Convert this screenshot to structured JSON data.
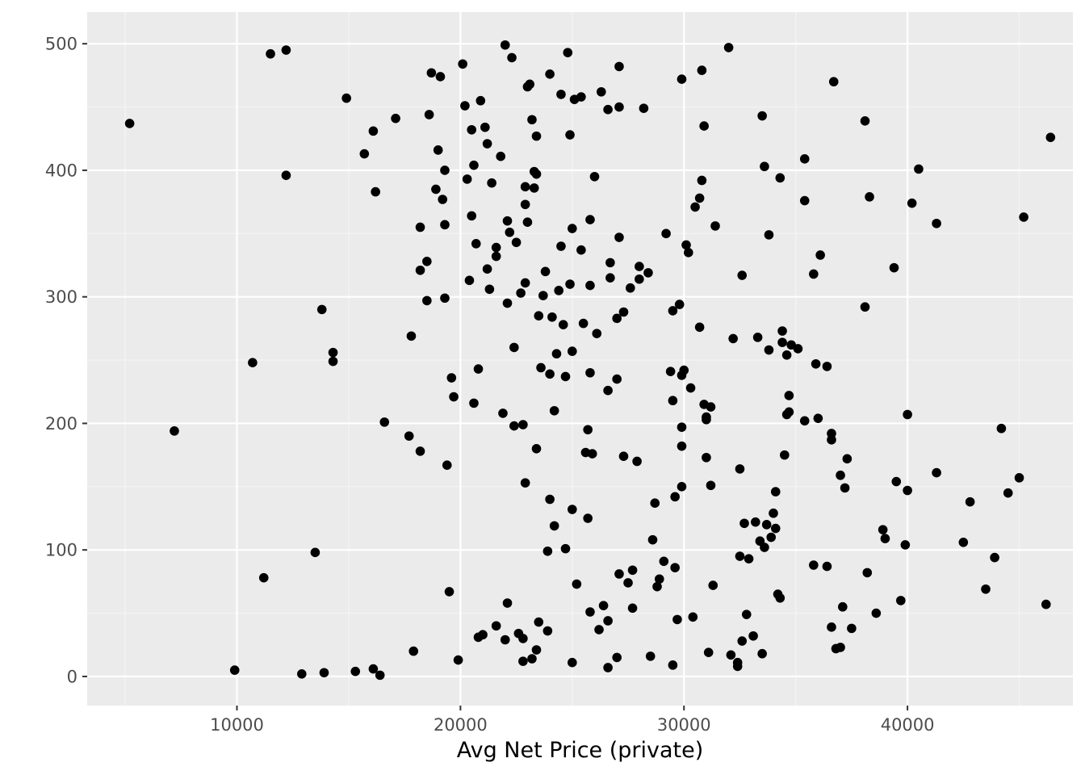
{
  "colors": {
    "panel_background": "#ebebeb",
    "grid_major": "#ffffff",
    "grid_minor": "#f4f4f4",
    "point": "#000000",
    "tick_text": "#4d4d4d"
  },
  "chart_data": {
    "type": "scatter",
    "title": "",
    "xlabel": "Avg Net Price (private)",
    "ylabel": "",
    "xlim": [
      3300,
      47400
    ],
    "ylim": [
      -23,
      525
    ],
    "x_ticks": [
      10000,
      20000,
      30000,
      40000
    ],
    "x_tick_labels": [
      "10000",
      "20000",
      "30000",
      "40000"
    ],
    "y_ticks": [
      0,
      100,
      200,
      300,
      400,
      500
    ],
    "y_tick_labels": [
      "0",
      "100",
      "200",
      "300",
      "400",
      "500"
    ],
    "grid": true,
    "legend": "none",
    "points": [
      [
        5200,
        437
      ],
      [
        7200,
        194
      ],
      [
        9900,
        5
      ],
      [
        10700,
        248
      ],
      [
        11200,
        78
      ],
      [
        11500,
        492
      ],
      [
        12200,
        495
      ],
      [
        12200,
        396
      ],
      [
        12900,
        2
      ],
      [
        13500,
        98
      ],
      [
        13800,
        290
      ],
      [
        13900,
        3
      ],
      [
        14300,
        256
      ],
      [
        14300,
        249
      ],
      [
        14900,
        457
      ],
      [
        15300,
        4
      ],
      [
        15700,
        413
      ],
      [
        16100,
        6
      ],
      [
        16100,
        431
      ],
      [
        16200,
        383
      ],
      [
        16400,
        1
      ],
      [
        16600,
        201
      ],
      [
        17100,
        441
      ],
      [
        17700,
        190
      ],
      [
        17800,
        269
      ],
      [
        17900,
        20
      ],
      [
        18200,
        178
      ],
      [
        18200,
        321
      ],
      [
        18200,
        355
      ],
      [
        18500,
        328
      ],
      [
        18500,
        297
      ],
      [
        18600,
        444
      ],
      [
        18700,
        477
      ],
      [
        18900,
        385
      ],
      [
        19000,
        416
      ],
      [
        19100,
        474
      ],
      [
        19200,
        377
      ],
      [
        19300,
        357
      ],
      [
        19300,
        400
      ],
      [
        19300,
        299
      ],
      [
        19400,
        167
      ],
      [
        19500,
        67
      ],
      [
        19600,
        236
      ],
      [
        19700,
        221
      ],
      [
        19900,
        13
      ],
      [
        20100,
        484
      ],
      [
        20200,
        451
      ],
      [
        20300,
        393
      ],
      [
        20400,
        313
      ],
      [
        20500,
        432
      ],
      [
        20500,
        364
      ],
      [
        20600,
        404
      ],
      [
        20600,
        216
      ],
      [
        20700,
        342
      ],
      [
        20800,
        243
      ],
      [
        20800,
        31
      ],
      [
        20900,
        455
      ],
      [
        21000,
        33
      ],
      [
        21100,
        434
      ],
      [
        21200,
        421
      ],
      [
        21200,
        322
      ],
      [
        21300,
        306
      ],
      [
        21400,
        390
      ],
      [
        21600,
        40
      ],
      [
        21600,
        339
      ],
      [
        21600,
        332
      ],
      [
        21800,
        411
      ],
      [
        21900,
        208
      ],
      [
        22000,
        29
      ],
      [
        22000,
        499
      ],
      [
        22100,
        58
      ],
      [
        22100,
        360
      ],
      [
        22100,
        295
      ],
      [
        22200,
        351
      ],
      [
        22300,
        489
      ],
      [
        22400,
        260
      ],
      [
        22400,
        198
      ],
      [
        22500,
        343
      ],
      [
        22600,
        34
      ],
      [
        22700,
        303
      ],
      [
        22800,
        199
      ],
      [
        22800,
        12
      ],
      [
        22800,
        30
      ],
      [
        22900,
        153
      ],
      [
        22900,
        387
      ],
      [
        22900,
        373
      ],
      [
        22900,
        311
      ],
      [
        23000,
        359
      ],
      [
        23000,
        466
      ],
      [
        23100,
        468
      ],
      [
        23200,
        440
      ],
      [
        23200,
        14
      ],
      [
        23300,
        399
      ],
      [
        23300,
        386
      ],
      [
        23400,
        397
      ],
      [
        23400,
        427
      ],
      [
        23400,
        180
      ],
      [
        23400,
        21
      ],
      [
        23500,
        43
      ],
      [
        23500,
        285
      ],
      [
        23600,
        244
      ],
      [
        23700,
        301
      ],
      [
        23800,
        320
      ],
      [
        23900,
        36
      ],
      [
        23900,
        99
      ],
      [
        24000,
        476
      ],
      [
        24000,
        140
      ],
      [
        24000,
        239
      ],
      [
        24100,
        284
      ],
      [
        24200,
        119
      ],
      [
        24200,
        210
      ],
      [
        24300,
        255
      ],
      [
        24400,
        305
      ],
      [
        24500,
        340
      ],
      [
        24500,
        460
      ],
      [
        24600,
        278
      ],
      [
        24700,
        237
      ],
      [
        24700,
        101
      ],
      [
        24800,
        493
      ],
      [
        24900,
        310
      ],
      [
        24900,
        428
      ],
      [
        25000,
        354
      ],
      [
        25000,
        132
      ],
      [
        25000,
        257
      ],
      [
        25000,
        11
      ],
      [
        25100,
        456
      ],
      [
        25200,
        73
      ],
      [
        25400,
        337
      ],
      [
        25400,
        458
      ],
      [
        25500,
        279
      ],
      [
        25600,
        177
      ],
      [
        25700,
        195
      ],
      [
        25700,
        125
      ],
      [
        25800,
        51
      ],
      [
        25800,
        309
      ],
      [
        25800,
        361
      ],
      [
        25800,
        240
      ],
      [
        25900,
        176
      ],
      [
        26000,
        395
      ],
      [
        26100,
        271
      ],
      [
        26200,
        37
      ],
      [
        26300,
        462
      ],
      [
        26400,
        56
      ],
      [
        26600,
        44
      ],
      [
        26600,
        448
      ],
      [
        26600,
        7
      ],
      [
        26600,
        226
      ],
      [
        26700,
        315
      ],
      [
        26700,
        327
      ],
      [
        27000,
        15
      ],
      [
        27000,
        235
      ],
      [
        27000,
        283
      ],
      [
        27100,
        482
      ],
      [
        27100,
        450
      ],
      [
        27100,
        347
      ],
      [
        27100,
        81
      ],
      [
        27300,
        174
      ],
      [
        27300,
        288
      ],
      [
        27500,
        74
      ],
      [
        27600,
        307
      ],
      [
        27700,
        84
      ],
      [
        27700,
        54
      ],
      [
        27900,
        170
      ],
      [
        28000,
        324
      ],
      [
        28000,
        314
      ],
      [
        28200,
        449
      ],
      [
        28400,
        319
      ],
      [
        28500,
        16
      ],
      [
        28600,
        108
      ],
      [
        28700,
        137
      ],
      [
        28800,
        71
      ],
      [
        28900,
        77
      ],
      [
        29100,
        91
      ],
      [
        29200,
        350
      ],
      [
        29400,
        241
      ],
      [
        29500,
        289
      ],
      [
        29500,
        218
      ],
      [
        29500,
        9
      ],
      [
        29600,
        142
      ],
      [
        29600,
        86
      ],
      [
        29700,
        45
      ],
      [
        29800,
        294
      ],
      [
        29900,
        182
      ],
      [
        29900,
        150
      ],
      [
        29900,
        197
      ],
      [
        29900,
        472
      ],
      [
        29900,
        238
      ],
      [
        30000,
        242
      ],
      [
        30100,
        341
      ],
      [
        30200,
        335
      ],
      [
        30300,
        228
      ],
      [
        30400,
        47
      ],
      [
        30500,
        371
      ],
      [
        30700,
        378
      ],
      [
        30700,
        276
      ],
      [
        30800,
        392
      ],
      [
        30800,
        479
      ],
      [
        30900,
        215
      ],
      [
        30900,
        435
      ],
      [
        31000,
        205
      ],
      [
        31000,
        173
      ],
      [
        31000,
        203
      ],
      [
        31100,
        19
      ],
      [
        31200,
        213
      ],
      [
        31200,
        151
      ],
      [
        31300,
        72
      ],
      [
        31400,
        356
      ],
      [
        32000,
        497
      ],
      [
        32100,
        17
      ],
      [
        32200,
        267
      ],
      [
        32400,
        11
      ],
      [
        32400,
        8
      ],
      [
        32500,
        164
      ],
      [
        32500,
        95
      ],
      [
        32600,
        28
      ],
      [
        32600,
        317
      ],
      [
        32700,
        121
      ],
      [
        32800,
        49
      ],
      [
        32900,
        93
      ],
      [
        33100,
        32
      ],
      [
        33200,
        122
      ],
      [
        33300,
        268
      ],
      [
        33400,
        107
      ],
      [
        33500,
        18
      ],
      [
        33500,
        443
      ],
      [
        33600,
        403
      ],
      [
        33600,
        102
      ],
      [
        33700,
        120
      ],
      [
        33800,
        258
      ],
      [
        33800,
        349
      ],
      [
        33900,
        110
      ],
      [
        34000,
        129
      ],
      [
        34100,
        117
      ],
      [
        34100,
        146
      ],
      [
        34200,
        65
      ],
      [
        34300,
        62
      ],
      [
        34300,
        394
      ],
      [
        34400,
        264
      ],
      [
        34400,
        273
      ],
      [
        34500,
        175
      ],
      [
        34600,
        207
      ],
      [
        34600,
        254
      ],
      [
        34700,
        209
      ],
      [
        34700,
        222
      ],
      [
        34800,
        262
      ],
      [
        35100,
        259
      ],
      [
        35400,
        202
      ],
      [
        35400,
        409
      ],
      [
        35400,
        376
      ],
      [
        35800,
        318
      ],
      [
        35800,
        88
      ],
      [
        35900,
        247
      ],
      [
        36000,
        204
      ],
      [
        36100,
        333
      ],
      [
        36400,
        245
      ],
      [
        36400,
        87
      ],
      [
        36600,
        39
      ],
      [
        36600,
        187
      ],
      [
        36600,
        192
      ],
      [
        36700,
        470
      ],
      [
        36800,
        22
      ],
      [
        37000,
        23
      ],
      [
        37000,
        159
      ],
      [
        37100,
        55
      ],
      [
        37200,
        149
      ],
      [
        37300,
        172
      ],
      [
        37500,
        38
      ],
      [
        38100,
        439
      ],
      [
        38100,
        292
      ],
      [
        38200,
        82
      ],
      [
        38300,
        379
      ],
      [
        38600,
        50
      ],
      [
        38900,
        116
      ],
      [
        39000,
        109
      ],
      [
        39400,
        323
      ],
      [
        39500,
        154
      ],
      [
        39700,
        60
      ],
      [
        39900,
        104
      ],
      [
        40000,
        207
      ],
      [
        40000,
        147
      ],
      [
        40200,
        374
      ],
      [
        40500,
        401
      ],
      [
        41300,
        161
      ],
      [
        41300,
        358
      ],
      [
        42500,
        106
      ],
      [
        42800,
        138
      ],
      [
        43500,
        69
      ],
      [
        43900,
        94
      ],
      [
        44200,
        196
      ],
      [
        44500,
        145
      ],
      [
        45000,
        157
      ],
      [
        45200,
        363
      ],
      [
        46200,
        57
      ],
      [
        46400,
        426
      ]
    ]
  }
}
